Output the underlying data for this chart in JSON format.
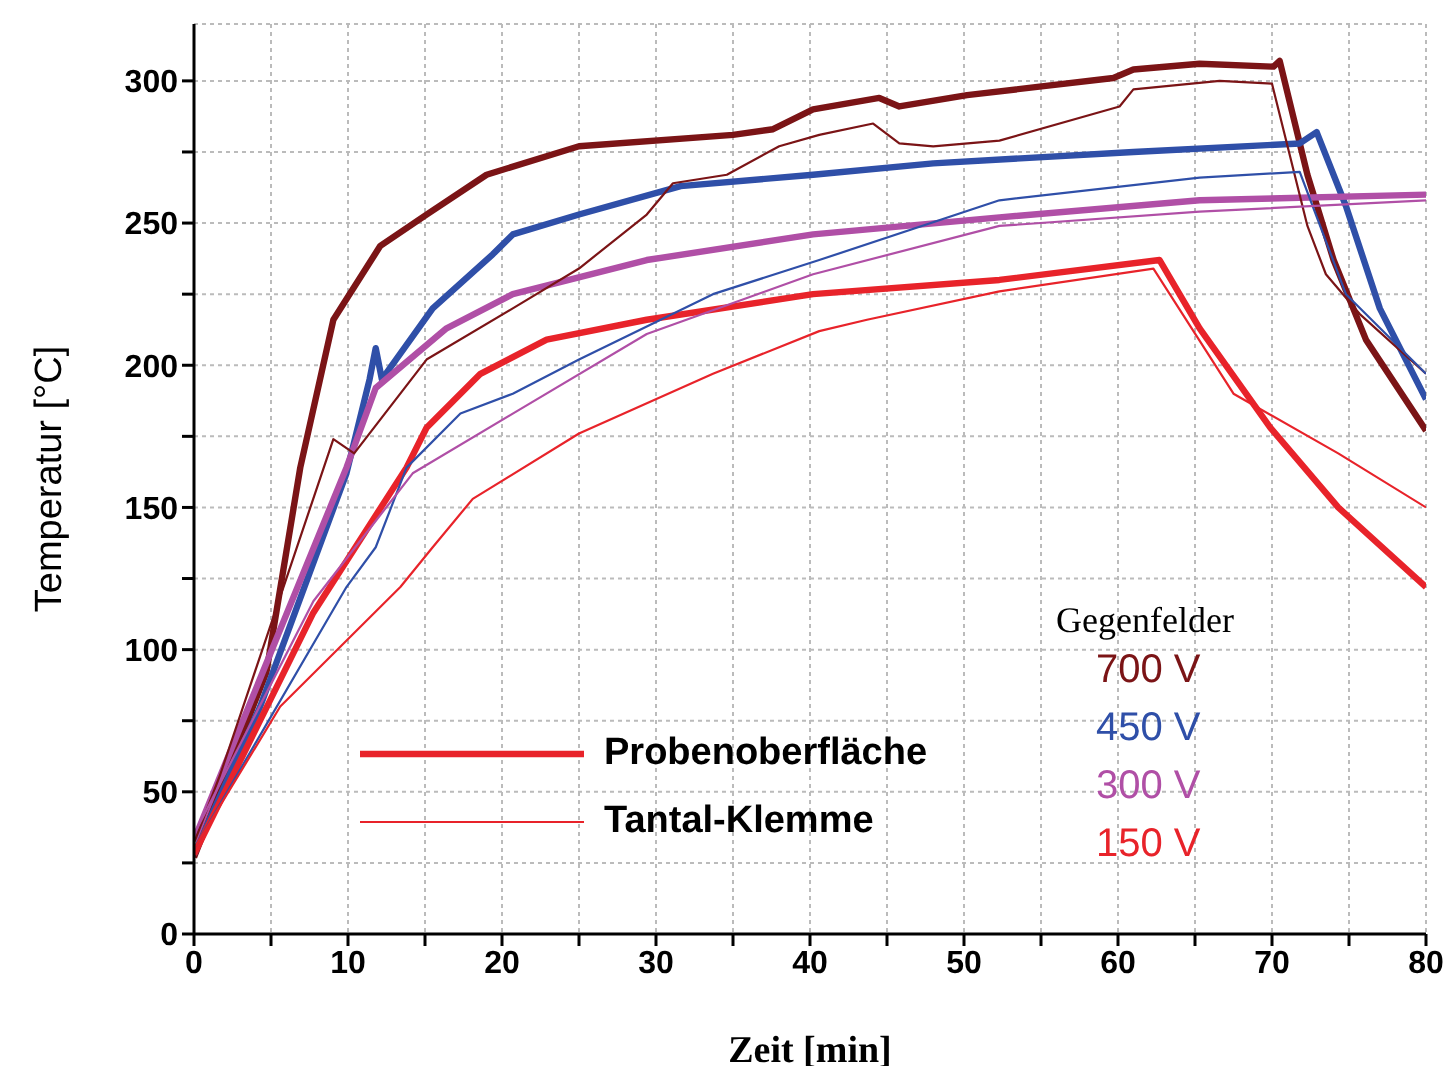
{
  "chart_data": {
    "type": "line",
    "xlabel": "Zeit [min]",
    "ylabel": "Temperatur [°C]",
    "legend_title": "Gegenfelder",
    "legend": "bottom right",
    "grid": true,
    "marker": "none",
    "line_style": "solid",
    "xlim": [
      0,
      80
    ],
    "ylim": [
      0,
      320
    ],
    "xticks": [
      0,
      {
        "value": 5,
        "label": null
      },
      10,
      {
        "value": 15,
        "label": null
      },
      20,
      {
        "value": 25,
        "label": null
      },
      30,
      {
        "value": 35,
        "label": null
      },
      40,
      {
        "value": 45,
        "label": null
      },
      50,
      {
        "value": 55,
        "label": null
      },
      60,
      {
        "value": 65,
        "label": null
      },
      70,
      {
        "value": 75,
        "label": null
      },
      80
    ],
    "yticks": [
      0,
      {
        "value": 25,
        "label": null
      },
      50,
      {
        "value": 75,
        "label": null
      },
      100,
      {
        "value": 125,
        "label": null
      },
      150,
      {
        "value": 175,
        "label": null
      },
      200,
      {
        "value": 225,
        "label": null
      },
      250,
      {
        "value": 275,
        "label": null
      },
      300
    ],
    "annotations": [
      "Probenoberfläche",
      "Tantal-Klemme"
    ],
    "series": [
      {
        "name": "700 V",
        "color": "#7b1416",
        "x": [
          0,
          4.7,
          6.9,
          9.05,
          12.1,
          15.1,
          19,
          25,
          35,
          37.6,
          40.2,
          44.5,
          45.8,
          50.2,
          59.7,
          61,
          65.3,
          70.1,
          70.5,
          72.3,
          74,
          76.1,
          80
        ],
        "values": [
          27,
          92,
          164,
          216,
          242,
          253,
          267,
          277,
          281,
          283,
          290,
          294,
          291,
          295,
          301,
          304,
          306,
          305,
          307,
          267,
          237,
          209,
          177
        ]
      },
      {
        "name": "450 V",
        "color": "#2f4fa8",
        "x": [
          0,
          4.3,
          9.9,
          11.4,
          11.8,
          12.2,
          15.5,
          19.4,
          20.7,
          25,
          31.6,
          40.2,
          48,
          61,
          71.8,
          72.9,
          74.8,
          77,
          80
        ],
        "values": [
          28,
          80,
          162,
          195,
          206,
          195,
          220,
          239,
          246,
          253,
          263,
          267,
          271,
          275,
          278,
          282,
          256,
          220,
          188
        ]
      },
      {
        "name": "300 V",
        "color": "#b04fa6",
        "x": [
          0,
          9.9,
          11.8,
          16.4,
          20.7,
          29.4,
          40.2,
          52.3,
          65.3,
          80
        ],
        "values": [
          33,
          164,
          192,
          213,
          225,
          237,
          246,
          252,
          258,
          260
        ]
      },
      {
        "name": "150 V",
        "color": "#e8232a",
        "x": [
          0,
          7.75,
          13.8,
          15.1,
          18.6,
          22.9,
          29.4,
          40.2,
          52.3,
          62.7,
          65.3,
          69.9,
          74.3,
          80
        ],
        "values": [
          28,
          113,
          164,
          178,
          197,
          209,
          216,
          225,
          230,
          237,
          213,
          178,
          150,
          122
        ]
      },
      {
        "color": "#7b1416",
        "x": [
          0,
          1.7,
          9.05,
          10.4,
          15.1,
          20.7,
          25,
          29.4,
          31.1,
          34.6,
          38,
          40.6,
          44.1,
          45.8,
          48,
          52.3,
          60.1,
          61,
          66.6,
          70,
          72.3,
          73.5,
          75.7,
          80
        ],
        "values": [
          32,
          56,
          174,
          169,
          202,
          220,
          234,
          253,
          264,
          267,
          277,
          281,
          285,
          278,
          277,
          279,
          291,
          297,
          300,
          299,
          249,
          232,
          218,
          197
        ]
      },
      {
        "color": "#2f4fa8",
        "x": [
          0,
          9.9,
          11.8,
          13.8,
          17.3,
          20.7,
          25,
          33.7,
          40.6,
          52.3,
          65.3,
          71.8,
          74.8,
          80
        ],
        "values": [
          30,
          122,
          136,
          164,
          183,
          190,
          202,
          225,
          237,
          258,
          266,
          268,
          225,
          197
        ]
      },
      {
        "color": "#b04fa6",
        "x": [
          0,
          7.75,
          14.2,
          20.7,
          29.4,
          40.2,
          52.3,
          65.3,
          80
        ],
        "values": [
          35,
          117,
          162,
          183,
          211,
          232,
          249,
          254,
          258
        ]
      },
      {
        "color": "#e8232a",
        "x": [
          0,
          5.6,
          13.4,
          15.5,
          18.1,
          25,
          33.7,
          40.6,
          43.7,
          52.3,
          62.3,
          67.5,
          74.3,
          80
        ],
        "values": [
          30,
          80,
          122,
          136,
          153,
          176,
          197,
          212,
          216,
          226,
          234,
          190,
          169,
          150
        ]
      }
    ]
  }
}
